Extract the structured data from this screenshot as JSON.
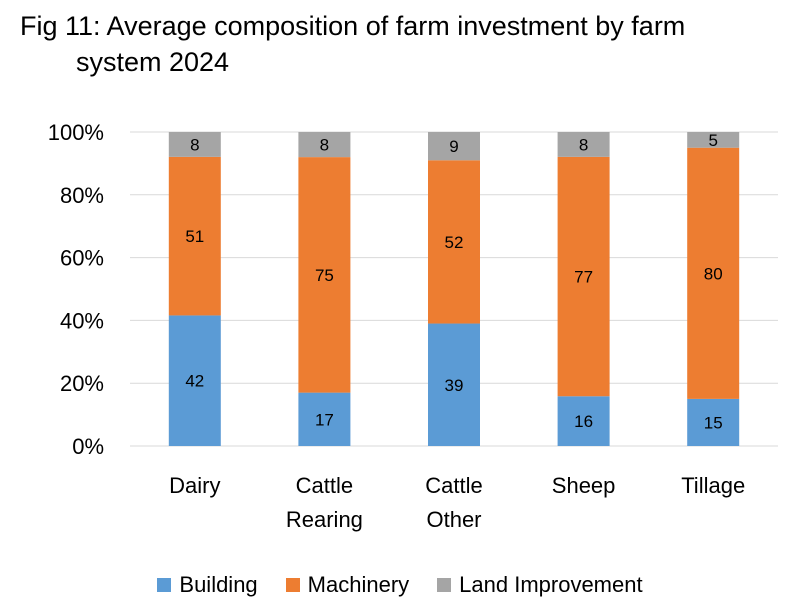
{
  "title": {
    "line1": "Fig 11: Average composition of farm investment by farm",
    "line2": "system 2024"
  },
  "chart_data": {
    "type": "bar",
    "stacked": true,
    "categories": [
      [
        "Dairy"
      ],
      [
        "Cattle",
        "Rearing"
      ],
      [
        "Cattle",
        "Other"
      ],
      [
        "Sheep"
      ],
      [
        "Tillage"
      ]
    ],
    "series": [
      {
        "name": "Building",
        "color": "#5b9bd5",
        "values": [
          42,
          17,
          39,
          16,
          15
        ]
      },
      {
        "name": "Machinery",
        "color": "#ed7d31",
        "values": [
          51,
          75,
          52,
          77,
          80
        ]
      },
      {
        "name": "Land Improvement",
        "color": "#a5a5a5",
        "values": [
          8,
          8,
          9,
          8,
          5
        ]
      }
    ],
    "ylim": [
      0,
      100
    ],
    "yticks": [
      "0%",
      "20%",
      "40%",
      "60%",
      "80%",
      "100%"
    ],
    "grid": true,
    "legend": "bottom",
    "data_labels": true
  }
}
